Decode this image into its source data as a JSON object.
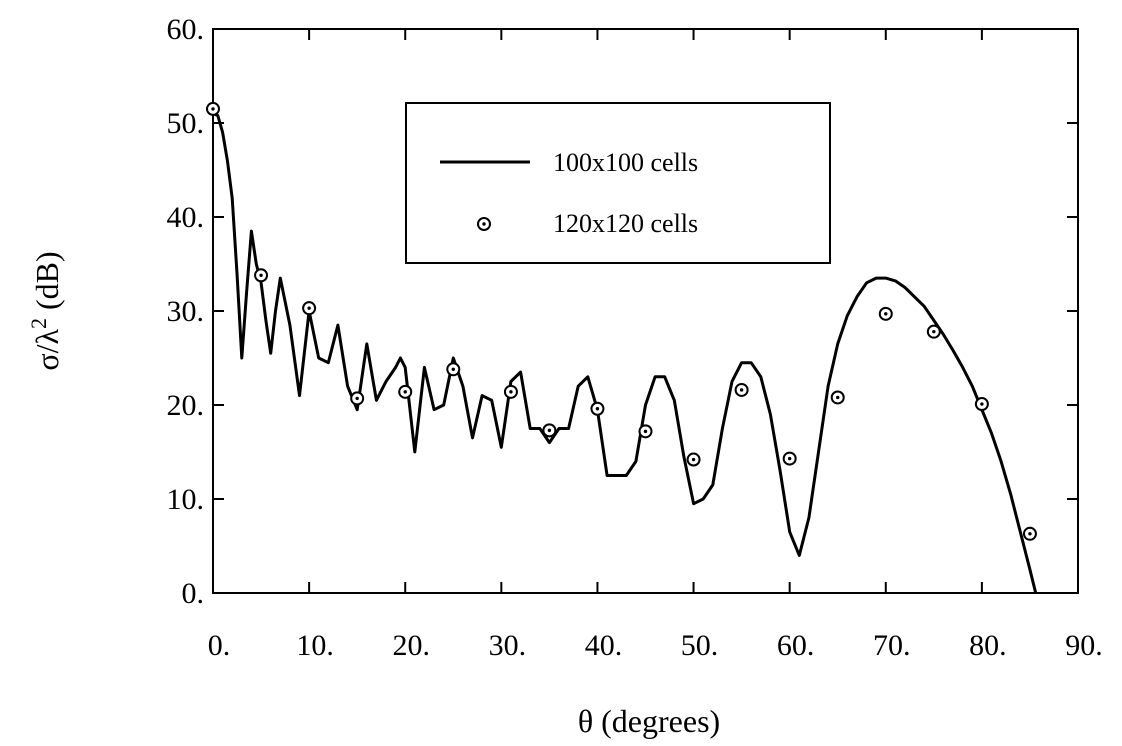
{
  "chart_data": {
    "type": "line",
    "title": "",
    "xlabel": "θ (degrees)",
    "ylabel_main": "σ/λ",
    "ylabel_sup": "2",
    "ylabel_unit": " (dB)",
    "xlim": [
      0,
      90
    ],
    "ylim": [
      0,
      60
    ],
    "xticks": [
      0,
      10,
      20,
      30,
      40,
      50,
      60,
      70,
      80,
      90
    ],
    "xtick_labels": [
      "0.",
      "10.",
      "20.",
      "30.",
      "40.",
      "50.",
      "60.",
      "70.",
      "80.",
      "90."
    ],
    "yticks": [
      0,
      10,
      20,
      30,
      40,
      50,
      60
    ],
    "ytick_labels": [
      "0.",
      "10.",
      "20.",
      "30.",
      "40.",
      "50.",
      "60."
    ],
    "grid": false,
    "legend_position": "top-center",
    "series": [
      {
        "name": "100x100 cells",
        "style": "line",
        "points": [
          [
            0,
            51
          ],
          [
            0.5,
            50.8
          ],
          [
            1,
            49
          ],
          [
            1.5,
            46
          ],
          [
            2,
            42
          ],
          [
            2.5,
            34
          ],
          [
            3,
            25
          ],
          [
            3.5,
            32
          ],
          [
            4,
            38.5
          ],
          [
            4.5,
            35
          ],
          [
            5,
            33
          ],
          [
            5.5,
            29
          ],
          [
            6,
            25.5
          ],
          [
            6.5,
            30
          ],
          [
            7,
            33.5
          ],
          [
            7.5,
            31
          ],
          [
            8,
            28.5
          ],
          [
            9,
            21
          ],
          [
            10,
            30
          ],
          [
            11,
            25
          ],
          [
            12,
            24.5
          ],
          [
            13,
            28.5
          ],
          [
            14,
            22
          ],
          [
            15,
            19.5
          ],
          [
            16,
            26.5
          ],
          [
            17,
            20.5
          ],
          [
            18,
            22.5
          ],
          [
            19,
            24
          ],
          [
            19.5,
            25
          ],
          [
            20,
            24
          ],
          [
            21,
            15
          ],
          [
            22,
            24
          ],
          [
            23,
            19.5
          ],
          [
            24,
            20
          ],
          [
            25,
            25
          ],
          [
            26,
            22
          ],
          [
            27,
            16.5
          ],
          [
            28,
            21
          ],
          [
            29,
            20.5
          ],
          [
            30,
            15.5
          ],
          [
            31,
            22.5
          ],
          [
            32,
            23.5
          ],
          [
            33,
            17.5
          ],
          [
            34,
            17.5
          ],
          [
            35,
            16
          ],
          [
            36,
            17.5
          ],
          [
            37,
            17.5
          ],
          [
            38,
            22
          ],
          [
            39,
            23
          ],
          [
            40,
            19.5
          ],
          [
            41,
            12.5
          ],
          [
            42,
            12.5
          ],
          [
            43,
            12.5
          ],
          [
            44,
            14
          ],
          [
            45,
            20
          ],
          [
            46,
            23
          ],
          [
            47,
            23
          ],
          [
            48,
            20.5
          ],
          [
            49,
            14.5
          ],
          [
            50,
            9.5
          ],
          [
            51,
            10
          ],
          [
            52,
            11.5
          ],
          [
            53,
            17.5
          ],
          [
            54,
            22.5
          ],
          [
            55,
            24.5
          ],
          [
            56,
            24.5
          ],
          [
            57,
            23
          ],
          [
            58,
            19
          ],
          [
            59,
            13
          ],
          [
            60,
            6.5
          ],
          [
            61,
            4
          ],
          [
            62,
            8
          ],
          [
            63,
            15
          ],
          [
            64,
            22
          ],
          [
            65,
            26.5
          ],
          [
            66,
            29.5
          ],
          [
            67,
            31.5
          ],
          [
            68,
            33
          ],
          [
            69,
            33.5
          ],
          [
            70,
            33.5
          ],
          [
            71,
            33.2
          ],
          [
            72,
            32.5
          ],
          [
            73,
            31.5
          ],
          [
            74,
            30.5
          ],
          [
            75,
            29
          ],
          [
            76,
            27.5
          ],
          [
            77,
            25.8
          ],
          [
            78,
            24
          ],
          [
            79,
            22
          ],
          [
            80,
            19.5
          ],
          [
            81,
            17
          ],
          [
            82,
            14
          ],
          [
            83,
            10.5
          ],
          [
            84,
            6.5
          ],
          [
            85,
            2.5
          ],
          [
            85.6,
            0
          ]
        ]
      },
      {
        "name": "120x120 cells",
        "style": "markers",
        "points": [
          [
            0,
            51.5
          ],
          [
            5,
            33.8
          ],
          [
            10,
            30.3
          ],
          [
            15,
            20.7
          ],
          [
            20,
            21.4
          ],
          [
            25,
            23.8
          ],
          [
            31,
            21.4
          ],
          [
            35,
            17.3
          ],
          [
            40,
            19.6
          ],
          [
            45,
            17.2
          ],
          [
            50,
            14.2
          ],
          [
            55,
            21.6
          ],
          [
            60,
            14.3
          ],
          [
            65,
            20.8
          ],
          [
            70,
            29.7
          ],
          [
            75,
            27.8
          ],
          [
            80,
            20.1
          ],
          [
            85,
            6.3
          ]
        ]
      }
    ]
  }
}
